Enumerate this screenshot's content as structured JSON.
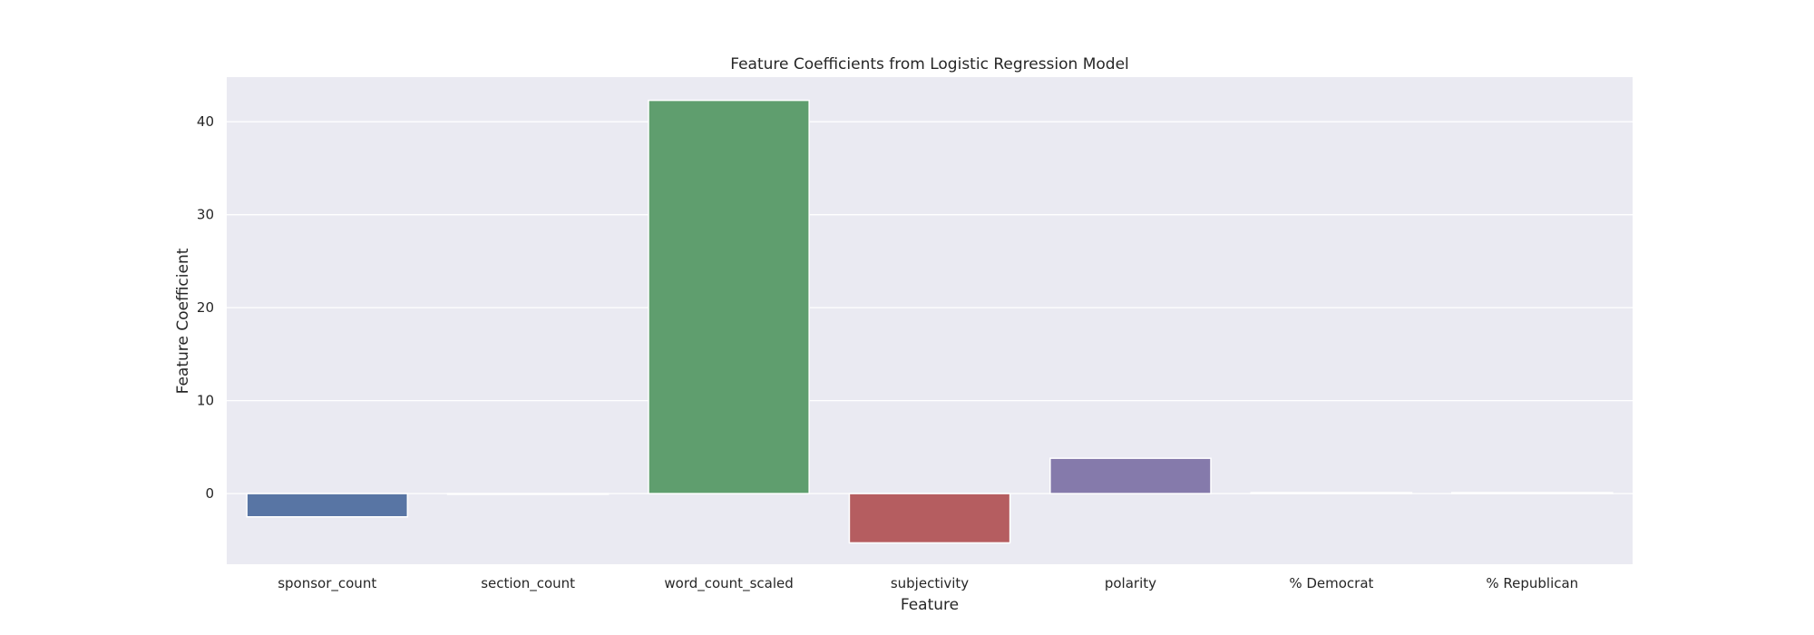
{
  "chart_data": {
    "type": "bar",
    "title": "Feature Coefficients from Logistic Regression Model",
    "xlabel": "Feature",
    "ylabel": "Feature Coefficient",
    "categories": [
      "sponsor_count",
      "section_count",
      "word_count_scaled",
      "subjectivity",
      "polarity",
      "% Democrat",
      "% Republican"
    ],
    "values": [
      -2.5,
      0.0,
      42.3,
      -5.3,
      3.8,
      0.1,
      0.1
    ],
    "ylim": [
      -7.6,
      44.8
    ],
    "yticks": [
      0,
      10,
      20,
      30,
      40
    ],
    "grid": true,
    "colors": [
      "#5875a4",
      "#cc8963",
      "#5f9e6e",
      "#b55d60",
      "#857aab",
      "#8d7866",
      "#d095bf"
    ],
    "background": "#eaeaf2"
  }
}
